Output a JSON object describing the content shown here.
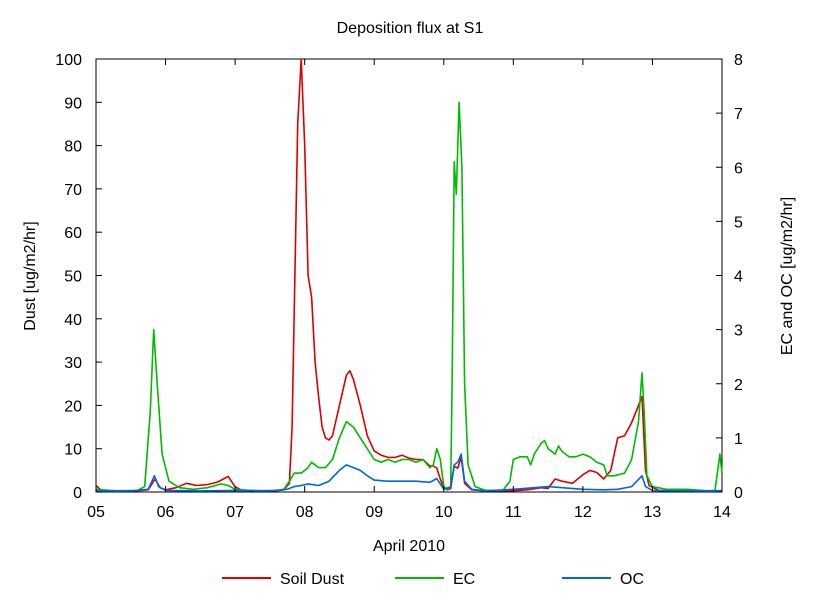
{
  "chart_data": {
    "type": "line",
    "title": "Deposition flux at S1",
    "xlabel": "April 2010",
    "ylabel": "Dust [ug/m2/hr]",
    "y2label": "EC and OC [ug/m2/hr]",
    "xlim": [
      5,
      14
    ],
    "ylim": [
      0,
      100
    ],
    "y2lim": [
      0,
      8
    ],
    "x_ticks": [
      5,
      6,
      7,
      8,
      9,
      10,
      11,
      12,
      13,
      14
    ],
    "x_tick_labels": [
      "05",
      "06",
      "07",
      "08",
      "09",
      "10",
      "11",
      "12",
      "13",
      "14"
    ],
    "y_ticks": [
      0,
      10,
      20,
      30,
      40,
      50,
      60,
      70,
      80,
      90,
      100
    ],
    "y_tick_labels": [
      "0",
      "10",
      "20",
      "30",
      "40",
      "50",
      "60",
      "70",
      "80",
      "90",
      "100"
    ],
    "y2_ticks": [
      0,
      1,
      2,
      3,
      4,
      5,
      6,
      7,
      8
    ],
    "y2_tick_labels": [
      "0",
      "1",
      "2",
      "3",
      "4",
      "5",
      "6",
      "7",
      "8"
    ],
    "grid": false,
    "legend_position": "bottom",
    "series": [
      {
        "name": "Soil Dust",
        "axis": "left",
        "color": "#dd0000",
        "points": [
          [
            5.0,
            1.5
          ],
          [
            5.08,
            0.3
          ],
          [
            5.3,
            0.3
          ],
          [
            5.6,
            0.3
          ],
          [
            5.75,
            0.5
          ],
          [
            5.85,
            3
          ],
          [
            5.92,
            1
          ],
          [
            6.0,
            0.5
          ],
          [
            6.15,
            1
          ],
          [
            6.3,
            2
          ],
          [
            6.45,
            1.5
          ],
          [
            6.6,
            1.7
          ],
          [
            6.75,
            2.3
          ],
          [
            6.9,
            3.6
          ],
          [
            7.0,
            1.2
          ],
          [
            7.1,
            0.4
          ],
          [
            7.4,
            0.3
          ],
          [
            7.6,
            0.3
          ],
          [
            7.7,
            0.5
          ],
          [
            7.78,
            2
          ],
          [
            7.82,
            15
          ],
          [
            7.86,
            50
          ],
          [
            7.9,
            85
          ],
          [
            7.95,
            100
          ],
          [
            8.0,
            80
          ],
          [
            8.05,
            50
          ],
          [
            8.1,
            45
          ],
          [
            8.15,
            30
          ],
          [
            8.2,
            22
          ],
          [
            8.25,
            15
          ],
          [
            8.3,
            12.5
          ],
          [
            8.35,
            12
          ],
          [
            8.4,
            13
          ],
          [
            8.5,
            20
          ],
          [
            8.6,
            27
          ],
          [
            8.65,
            28
          ],
          [
            8.7,
            26
          ],
          [
            8.8,
            20
          ],
          [
            8.9,
            13
          ],
          [
            9.0,
            9.5
          ],
          [
            9.1,
            8.5
          ],
          [
            9.2,
            8
          ],
          [
            9.3,
            8
          ],
          [
            9.4,
            8.5
          ],
          [
            9.5,
            7.8
          ],
          [
            9.6,
            7.5
          ],
          [
            9.7,
            7.5
          ],
          [
            9.8,
            6
          ],
          [
            9.85,
            6
          ],
          [
            9.9,
            5.5
          ],
          [
            9.95,
            3
          ],
          [
            10.0,
            1
          ],
          [
            10.05,
            0.5
          ],
          [
            10.1,
            0.8
          ],
          [
            10.15,
            6
          ],
          [
            10.2,
            5.5
          ],
          [
            10.25,
            8
          ],
          [
            10.3,
            2
          ],
          [
            10.4,
            0.5
          ],
          [
            10.6,
            0.3
          ],
          [
            11.0,
            0.3
          ],
          [
            11.2,
            0.5
          ],
          [
            11.4,
            1
          ],
          [
            11.5,
            0.8
          ],
          [
            11.6,
            3
          ],
          [
            11.7,
            2.5
          ],
          [
            11.85,
            2
          ],
          [
            12.0,
            4
          ],
          [
            12.1,
            5
          ],
          [
            12.2,
            4.5
          ],
          [
            12.3,
            3
          ],
          [
            12.4,
            5
          ],
          [
            12.5,
            12.5
          ],
          [
            12.6,
            13
          ],
          [
            12.7,
            16
          ],
          [
            12.8,
            20
          ],
          [
            12.85,
            22
          ],
          [
            12.9,
            5
          ],
          [
            12.95,
            1.5
          ],
          [
            13.1,
            0.3
          ],
          [
            13.5,
            0.3
          ],
          [
            13.9,
            0.3
          ],
          [
            14.0,
            0.3
          ]
        ]
      },
      {
        "name": "EC",
        "axis": "right",
        "color": "#00bb00",
        "points": [
          [
            5.0,
            0.05
          ],
          [
            5.3,
            0.02
          ],
          [
            5.6,
            0.03
          ],
          [
            5.7,
            0.1
          ],
          [
            5.78,
            1.5
          ],
          [
            5.83,
            3
          ],
          [
            5.88,
            2
          ],
          [
            5.95,
            0.7
          ],
          [
            6.05,
            0.2
          ],
          [
            6.2,
            0.08
          ],
          [
            6.4,
            0.05
          ],
          [
            6.6,
            0.08
          ],
          [
            6.8,
            0.15
          ],
          [
            6.9,
            0.12
          ],
          [
            7.0,
            0.05
          ],
          [
            7.3,
            0.02
          ],
          [
            7.6,
            0.03
          ],
          [
            7.7,
            0.05
          ],
          [
            7.78,
            0.2
          ],
          [
            7.85,
            0.35
          ],
          [
            7.95,
            0.35
          ],
          [
            8.0,
            0.4
          ],
          [
            8.05,
            0.45
          ],
          [
            8.1,
            0.55
          ],
          [
            8.2,
            0.45
          ],
          [
            8.3,
            0.45
          ],
          [
            8.4,
            0.6
          ],
          [
            8.5,
            1.0
          ],
          [
            8.6,
            1.3
          ],
          [
            8.7,
            1.2
          ],
          [
            8.8,
            1.0
          ],
          [
            8.9,
            0.8
          ],
          [
            9.0,
            0.6
          ],
          [
            9.1,
            0.55
          ],
          [
            9.2,
            0.6
          ],
          [
            9.3,
            0.55
          ],
          [
            9.4,
            0.6
          ],
          [
            9.5,
            0.6
          ],
          [
            9.6,
            0.55
          ],
          [
            9.7,
            0.6
          ],
          [
            9.8,
            0.45
          ],
          [
            9.85,
            0.5
          ],
          [
            9.9,
            0.8
          ],
          [
            9.95,
            0.6
          ],
          [
            10.0,
            0.1
          ],
          [
            10.05,
            0.05
          ],
          [
            10.1,
            0.1
          ],
          [
            10.12,
            2
          ],
          [
            10.15,
            6.1
          ],
          [
            10.18,
            5.5
          ],
          [
            10.22,
            7.2
          ],
          [
            10.26,
            6
          ],
          [
            10.3,
            2
          ],
          [
            10.35,
            0.5
          ],
          [
            10.45,
            0.1
          ],
          [
            10.6,
            0.03
          ],
          [
            10.85,
            0.03
          ],
          [
            10.95,
            0.2
          ],
          [
            11.0,
            0.6
          ],
          [
            11.1,
            0.65
          ],
          [
            11.2,
            0.65
          ],
          [
            11.25,
            0.5
          ],
          [
            11.3,
            0.7
          ],
          [
            11.4,
            0.9
          ],
          [
            11.45,
            0.95
          ],
          [
            11.5,
            0.8
          ],
          [
            11.55,
            0.75
          ],
          [
            11.6,
            0.7
          ],
          [
            11.65,
            0.85
          ],
          [
            11.7,
            0.75
          ],
          [
            11.8,
            0.65
          ],
          [
            11.9,
            0.65
          ],
          [
            12.0,
            0.7
          ],
          [
            12.1,
            0.65
          ],
          [
            12.2,
            0.55
          ],
          [
            12.3,
            0.5
          ],
          [
            12.35,
            0.3
          ],
          [
            12.45,
            0.3
          ],
          [
            12.6,
            0.35
          ],
          [
            12.7,
            0.6
          ],
          [
            12.8,
            1.3
          ],
          [
            12.85,
            2.2
          ],
          [
            12.88,
            1.5
          ],
          [
            12.92,
            0.3
          ],
          [
            13.0,
            0.1
          ],
          [
            13.2,
            0.05
          ],
          [
            13.5,
            0.05
          ],
          [
            13.8,
            0.02
          ],
          [
            13.9,
            0.03
          ],
          [
            13.97,
            0.7
          ],
          [
            14.0,
            0.35
          ]
        ]
      },
      {
        "name": "OC",
        "axis": "right",
        "color": "#0066dd",
        "points": [
          [
            5.0,
            0.02
          ],
          [
            5.5,
            0.02
          ],
          [
            5.75,
            0.05
          ],
          [
            5.84,
            0.3
          ],
          [
            5.9,
            0.1
          ],
          [
            6.0,
            0.03
          ],
          [
            6.5,
            0.02
          ],
          [
            7.0,
            0.03
          ],
          [
            7.5,
            0.02
          ],
          [
            7.75,
            0.05
          ],
          [
            7.85,
            0.1
          ],
          [
            7.95,
            0.12
          ],
          [
            8.05,
            0.15
          ],
          [
            8.2,
            0.12
          ],
          [
            8.35,
            0.2
          ],
          [
            8.5,
            0.4
          ],
          [
            8.6,
            0.5
          ],
          [
            8.7,
            0.45
          ],
          [
            8.8,
            0.4
          ],
          [
            8.9,
            0.3
          ],
          [
            9.0,
            0.22
          ],
          [
            9.2,
            0.2
          ],
          [
            9.4,
            0.2
          ],
          [
            9.6,
            0.2
          ],
          [
            9.8,
            0.18
          ],
          [
            9.9,
            0.25
          ],
          [
            9.95,
            0.15
          ],
          [
            10.0,
            0.05
          ],
          [
            10.1,
            0.1
          ],
          [
            10.15,
            0.5
          ],
          [
            10.2,
            0.55
          ],
          [
            10.25,
            0.7
          ],
          [
            10.3,
            0.2
          ],
          [
            10.4,
            0.05
          ],
          [
            10.6,
            0.02
          ],
          [
            11.0,
            0.05
          ],
          [
            11.3,
            0.08
          ],
          [
            11.5,
            0.1
          ],
          [
            11.7,
            0.08
          ],
          [
            12.0,
            0.05
          ],
          [
            12.3,
            0.04
          ],
          [
            12.5,
            0.05
          ],
          [
            12.7,
            0.1
          ],
          [
            12.85,
            0.3
          ],
          [
            12.9,
            0.1
          ],
          [
            13.0,
            0.03
          ],
          [
            13.5,
            0.02
          ],
          [
            14.0,
            0.02
          ]
        ]
      }
    ]
  }
}
